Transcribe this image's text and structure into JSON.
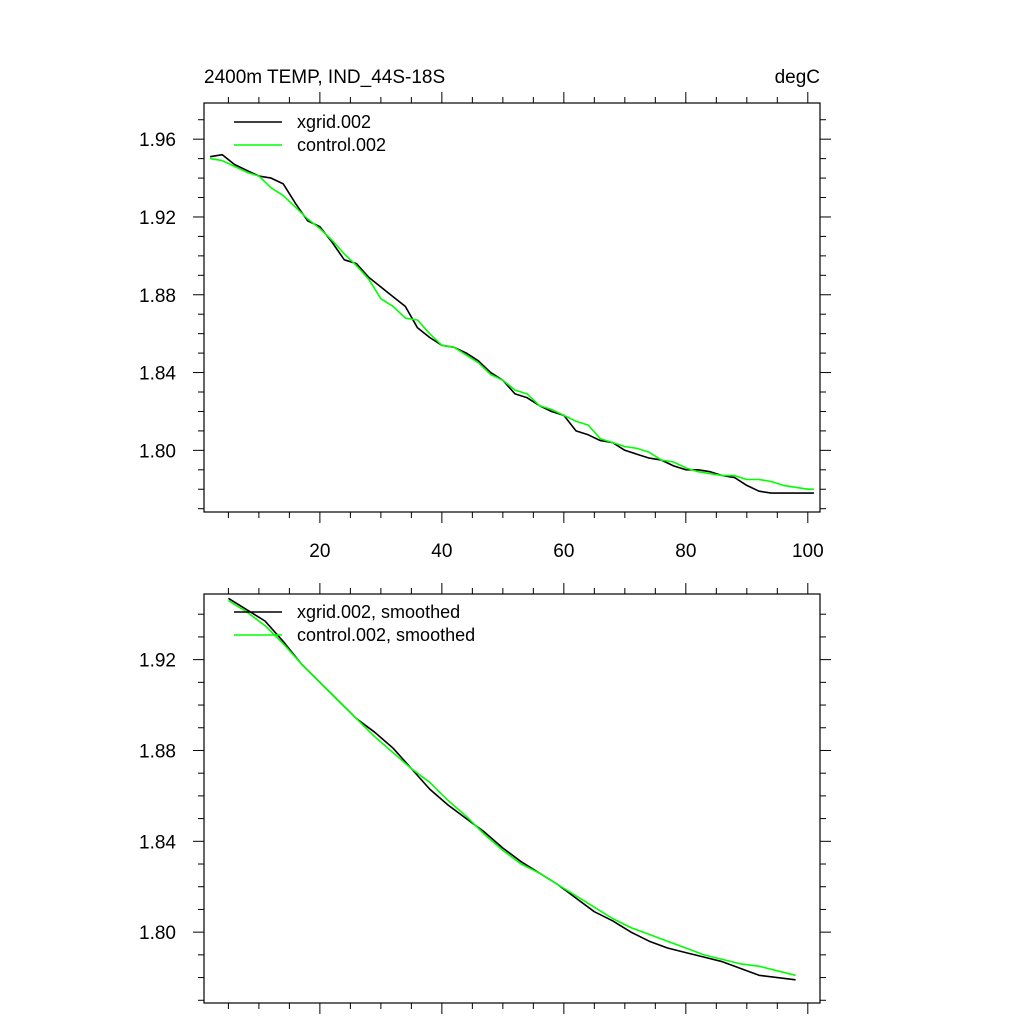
{
  "chart_data": [
    {
      "type": "line",
      "title_left": "2400m TEMP, IND_44S-18S",
      "title_right": "degC",
      "xlim": [
        1,
        102
      ],
      "ylim": [
        1.7683,
        1.9786
      ],
      "x_ticks": [
        20,
        40,
        60,
        80,
        100
      ],
      "x_tick_labels": [
        "20",
        "40",
        "60",
        "80",
        "100"
      ],
      "y_ticks": [
        1.96,
        1.92,
        1.88,
        1.84,
        1.8
      ],
      "y_tick_labels": [
        "1.96",
        "1.92",
        "1.88",
        "1.84",
        "1.80"
      ],
      "legend_position": "top-left",
      "series": [
        {
          "name": "xgrid.002",
          "color": "#000000",
          "x": [
            2,
            4,
            6,
            8,
            10,
            12,
            14,
            16,
            18,
            20,
            22,
            24,
            26,
            28,
            30,
            32,
            34,
            36,
            38,
            40,
            42,
            44,
            46,
            48,
            50,
            52,
            54,
            56,
            58,
            60,
            62,
            64,
            66,
            68,
            70,
            72,
            74,
            76,
            78,
            80,
            82,
            84,
            86,
            88,
            90,
            92,
            94,
            96,
            98,
            100,
            101
          ],
          "values": [
            1.951,
            1.952,
            1.947,
            1.944,
            1.941,
            1.94,
            1.937,
            1.927,
            1.918,
            1.915,
            1.907,
            1.898,
            1.896,
            1.889,
            1.884,
            1.879,
            1.874,
            1.863,
            1.858,
            1.854,
            1.853,
            1.85,
            1.846,
            1.84,
            1.836,
            1.829,
            1.827,
            1.823,
            1.82,
            1.818,
            1.81,
            1.808,
            1.805,
            1.804,
            1.8,
            1.798,
            1.796,
            1.795,
            1.792,
            1.79,
            1.79,
            1.789,
            1.787,
            1.786,
            1.782,
            1.779,
            1.778,
            1.778,
            1.778,
            1.778,
            1.778
          ]
        },
        {
          "name": "control.002",
          "color": "#00ff00",
          "x": [
            2,
            4,
            6,
            8,
            10,
            12,
            14,
            16,
            18,
            20,
            22,
            24,
            26,
            28,
            30,
            32,
            34,
            36,
            38,
            40,
            42,
            44,
            46,
            48,
            50,
            52,
            54,
            56,
            58,
            60,
            62,
            64,
            66,
            68,
            70,
            72,
            74,
            76,
            78,
            80,
            82,
            84,
            86,
            88,
            90,
            92,
            94,
            96,
            98,
            100,
            101
          ],
          "values": [
            1.95,
            1.949,
            1.946,
            1.943,
            1.941,
            1.935,
            1.931,
            1.925,
            1.919,
            1.914,
            1.908,
            1.901,
            1.895,
            1.888,
            1.878,
            1.874,
            1.868,
            1.867,
            1.86,
            1.854,
            1.853,
            1.849,
            1.845,
            1.839,
            1.836,
            1.831,
            1.829,
            1.823,
            1.821,
            1.818,
            1.815,
            1.813,
            1.806,
            1.804,
            1.802,
            1.801,
            1.799,
            1.795,
            1.794,
            1.791,
            1.789,
            1.788,
            1.787,
            1.787,
            1.785,
            1.785,
            1.784,
            1.782,
            1.781,
            1.78,
            1.78
          ]
        }
      ]
    },
    {
      "type": "line",
      "xlim": [
        1,
        102
      ],
      "ylim": [
        1.7688,
        1.9489
      ],
      "x_ticks": [
        20,
        40,
        60,
        80,
        100
      ],
      "y_ticks": [
        1.92,
        1.88,
        1.84,
        1.8
      ],
      "y_tick_labels": [
        "1.92",
        "1.88",
        "1.84",
        "1.80"
      ],
      "legend_position": "top-left",
      "series": [
        {
          "name": "xgrid.002, smoothed",
          "color": "#000000",
          "x": [
            5,
            8,
            11,
            14,
            17,
            20,
            23,
            26,
            29,
            32,
            35,
            38,
            41,
            44,
            47,
            50,
            53,
            56,
            59,
            62,
            65,
            68,
            71,
            74,
            77,
            80,
            83,
            86,
            89,
            92,
            95,
            98
          ],
          "values": [
            1.947,
            1.942,
            1.937,
            1.928,
            1.918,
            1.91,
            1.902,
            1.894,
            1.888,
            1.881,
            1.872,
            1.863,
            1.856,
            1.85,
            1.844,
            1.837,
            1.831,
            1.826,
            1.821,
            1.815,
            1.809,
            1.805,
            1.8,
            1.796,
            1.793,
            1.791,
            1.789,
            1.787,
            1.784,
            1.781,
            1.78,
            1.779
          ]
        },
        {
          "name": "control.002, smoothed",
          "color": "#00ff00",
          "x": [
            5,
            8,
            11,
            14,
            17,
            20,
            23,
            26,
            29,
            32,
            35,
            38,
            41,
            44,
            47,
            50,
            53,
            56,
            59,
            62,
            65,
            68,
            71,
            74,
            77,
            80,
            83,
            86,
            89,
            92,
            95,
            98
          ],
          "values": [
            1.946,
            1.941,
            1.935,
            1.927,
            1.918,
            1.91,
            1.902,
            1.894,
            1.886,
            1.879,
            1.872,
            1.866,
            1.858,
            1.851,
            1.843,
            1.836,
            1.83,
            1.826,
            1.821,
            1.816,
            1.811,
            1.806,
            1.802,
            1.799,
            1.796,
            1.793,
            1.79,
            1.788,
            1.786,
            1.785,
            1.783,
            1.781
          ]
        }
      ]
    }
  ]
}
